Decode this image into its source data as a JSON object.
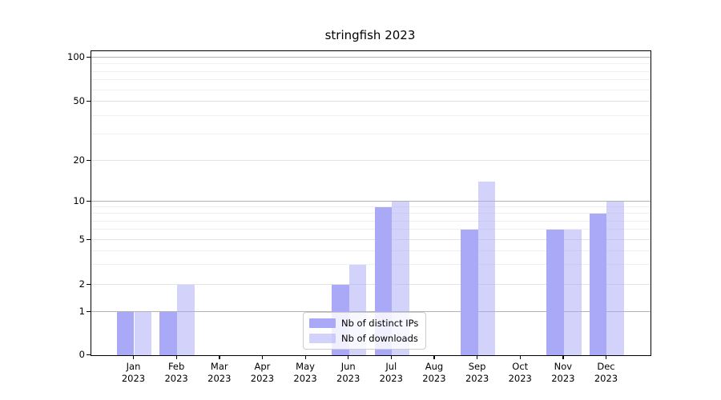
{
  "title": "stringfish 2023",
  "chart_data": {
    "type": "bar",
    "categories": [
      "Jan 2023",
      "Feb 2023",
      "Mar 2023",
      "Apr 2023",
      "May 2023",
      "Jun 2023",
      "Jul 2023",
      "Aug 2023",
      "Sep 2023",
      "Oct 2023",
      "Nov 2023",
      "Dec 2023"
    ],
    "series": [
      {
        "name": "Nb of distinct IPs",
        "color": "#a9a9f8",
        "values": [
          1,
          1,
          0,
          0,
          0,
          2,
          9,
          0,
          6,
          0,
          6,
          8
        ]
      },
      {
        "name": "Nb of downloads",
        "color": "rgba(169,169,248,0.52)",
        "values": [
          1,
          2,
          0,
          0,
          0,
          3,
          10,
          0,
          14,
          0,
          6,
          10
        ]
      }
    ],
    "yscale": "log-like (0,1,2,5,10,20,50,100)",
    "yticks": [
      0,
      1,
      2,
      5,
      10,
      20,
      50,
      100
    ],
    "yticklabels": [
      "0",
      "1",
      "2",
      "5",
      "10",
      "20",
      "50",
      "100"
    ],
    "minor_yticks": [
      3,
      4,
      6,
      7,
      8,
      9,
      30,
      40,
      60,
      70,
      80,
      90
    ],
    "sub_major_yticks": [
      2,
      5,
      20,
      50
    ],
    "major_yticks": [
      1,
      10,
      100
    ],
    "ylim": [
      0,
      110
    ],
    "grid": true,
    "legend_position": "lower center"
  },
  "legend": {
    "items": [
      {
        "label": "Nb of distinct IPs",
        "color": "#a9a9f8"
      },
      {
        "label": "Nb of downloads",
        "color": "rgba(169,169,248,0.52)"
      }
    ]
  },
  "colors": {
    "distinct_ips_bar": "#a9a9f8",
    "downloads_bar": "#d9d9f9",
    "major_grid": "#b2b2b2",
    "minor_grid": "#efefef",
    "axis": "#000000",
    "background": "#ffffff"
  }
}
